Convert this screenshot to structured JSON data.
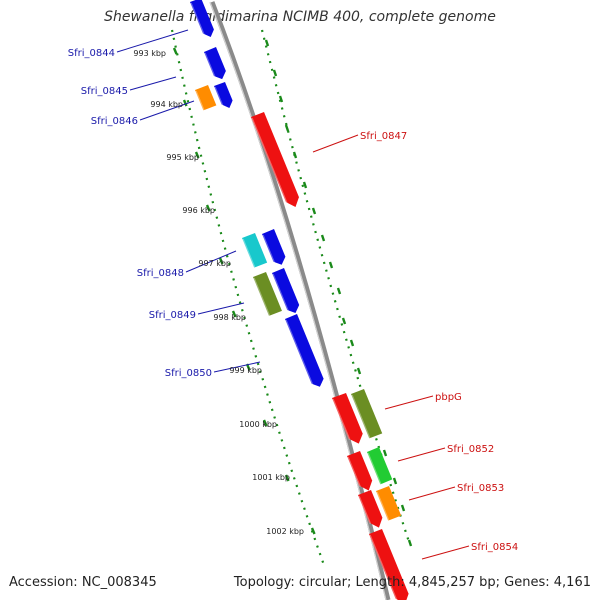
{
  "title": "Shewanella frigidimarina NCIMB 400, complete genome",
  "footer": {
    "accession": "Accession: NC_008345",
    "summary": "Topology: circular; Length: 4,845,257 bp; Genes: 4,161"
  },
  "colors": {
    "backbone": "#8a8a8a",
    "dots": "#1a8a1a",
    "left_label": "#1a1aaa",
    "right_label": "#cc1111",
    "tick_label": "#222222"
  },
  "ticks": [
    "993 kbp",
    "994 kbp",
    "995 kbp",
    "996 kbp",
    "997 kbp",
    "998 kbp",
    "999 kbp",
    "1000 kbp",
    "1001 kbp",
    "1002 kbp"
  ],
  "genes_left": [
    {
      "label": "Sfri_0844"
    },
    {
      "label": "Sfri_0845"
    },
    {
      "label": "Sfri_0846"
    },
    {
      "label": "Sfri_0848"
    },
    {
      "label": "Sfri_0849"
    },
    {
      "label": "Sfri_0850"
    }
  ],
  "genes_right": [
    {
      "label": "Sfri_0847"
    },
    {
      "label": "pbpG"
    },
    {
      "label": "Sfri_0852"
    },
    {
      "label": "Sfri_0853"
    },
    {
      "label": "Sfri_0854"
    }
  ]
}
